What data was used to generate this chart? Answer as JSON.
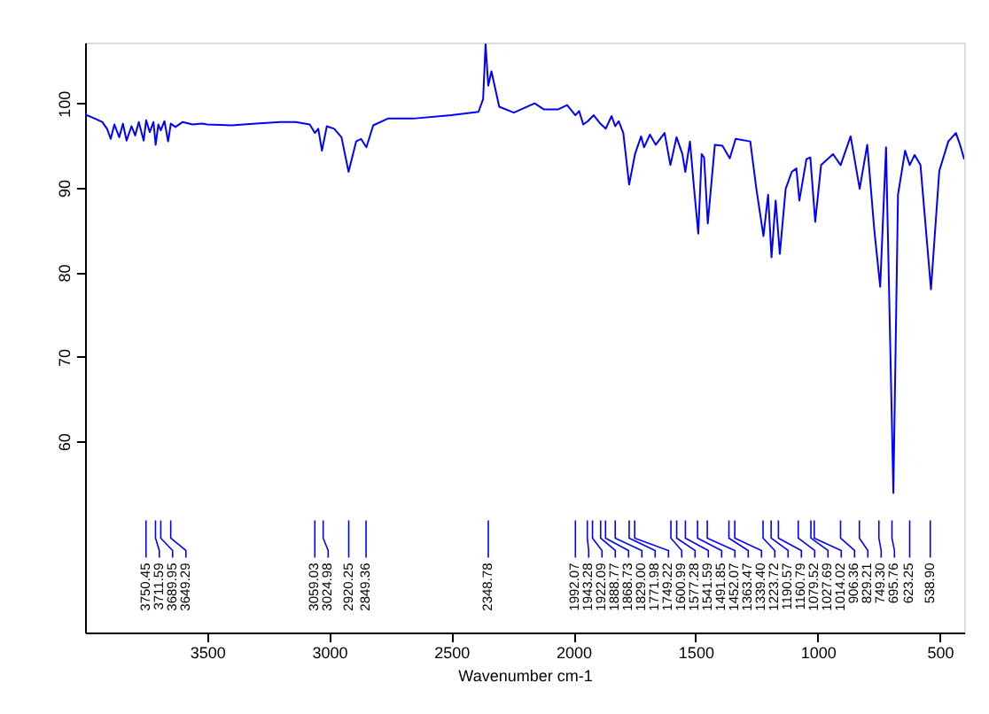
{
  "chart_data": {
    "type": "line",
    "xlabel": "Wavenumber cm-1",
    "xlim": [
      4000,
      400
    ],
    "xticks": [
      3500,
      3000,
      2500,
      2000,
      1500,
      1000,
      500
    ],
    "ylim": [
      37.4,
      107.2
    ],
    "yticks": [
      60,
      70,
      80,
      90,
      100
    ],
    "grid": false,
    "marker": "none",
    "line_style": "solid",
    "x": [
      4000,
      3960,
      3930,
      3910,
      3895,
      3880,
      3860,
      3845,
      3830,
      3810,
      3795,
      3780,
      3760,
      3750,
      3735,
      3720,
      3711,
      3700,
      3690,
      3675,
      3660,
      3649,
      3630,
      3600,
      3560,
      3520,
      3500,
      3400,
      3300,
      3200,
      3138,
      3080,
      3059,
      3045,
      3030,
      3010,
      2980,
      2950,
      2921,
      2890,
      2870,
      2848,
      2820,
      2760,
      2657,
      2500,
      2389,
      2370,
      2360,
      2349,
      2336,
      2304,
      2244,
      2159,
      2122,
      2062,
      2026,
      1992,
      1977,
      1960,
      1941,
      1917,
      1890,
      1868,
      1844,
      1829,
      1815,
      1796,
      1772,
      1748,
      1723,
      1711,
      1687,
      1663,
      1627,
      1603,
      1578,
      1554,
      1542,
      1523,
      1506,
      1489,
      1475,
      1465,
      1450,
      1421,
      1390,
      1360,
      1336,
      1276,
      1251,
      1222,
      1203,
      1189,
      1172,
      1155,
      1131,
      1106,
      1087,
      1075,
      1046,
      1030,
      1010,
      986,
      937,
      906,
      865,
      828,
      797,
      768,
      744,
      720,
      690,
      671,
      642,
      623,
      603,
      579,
      536,
      502,
      465,
      434,
      417,
      400
    ],
    "series": [
      {
        "color": "#0000ff",
        "values": [
          98.7,
          98.2,
          97.8,
          97.0,
          95.8,
          97.5,
          96.0,
          97.6,
          95.6,
          97.3,
          96.2,
          97.8,
          95.6,
          98.0,
          96.6,
          97.8,
          95.1,
          97.5,
          96.8,
          97.9,
          95.5,
          97.6,
          97.2,
          97.8,
          97.5,
          97.6,
          97.5,
          97.4,
          97.6,
          97.8,
          97.8,
          97.5,
          96.5,
          97.0,
          94.4,
          97.3,
          97.0,
          96.0,
          91.9,
          95.5,
          95.8,
          94.8,
          97.4,
          98.2,
          98.2,
          98.6,
          99.0,
          100.5,
          107.0,
          102.1,
          103.8,
          99.6,
          98.9,
          100.0,
          99.3,
          99.3,
          99.8,
          98.6,
          99.1,
          97.5,
          97.9,
          98.6,
          97.6,
          97.0,
          98.5,
          97.3,
          97.9,
          96.5,
          90.4,
          94.0,
          96.1,
          94.8,
          96.3,
          95.1,
          96.5,
          92.7,
          96.0,
          94.0,
          91.9,
          95.5,
          89.9,
          84.6,
          94.0,
          93.6,
          85.8,
          95.1,
          95.0,
          93.5,
          95.8,
          95.5,
          89.9,
          84.3,
          89.2,
          81.8,
          88.5,
          82.2,
          89.9,
          91.9,
          92.3,
          88.5,
          93.4,
          93.6,
          86.0,
          92.7,
          94.0,
          92.7,
          96.1,
          89.9,
          95.1,
          85.0,
          78.3,
          94.8,
          53.9,
          89.2,
          94.4,
          92.7,
          93.9,
          92.7,
          78.0,
          92.0,
          95.5,
          96.5,
          95.1,
          93.4
        ]
      }
    ],
    "annotations": [
      "3750.45",
      "3711.59",
      "3689.95",
      "3649.29",
      "3059.03",
      "3024.98",
      "2920.25",
      "2849.36",
      "2348.78",
      "1992.07",
      "1943.28",
      "1922.09",
      "1888.77",
      "1868.73",
      "1829.00",
      "1771.98",
      "1749.22",
      "1600.99",
      "1577.28",
      "1541.59",
      "1491.85",
      "1452.07",
      "1363.47",
      "1339.40",
      "1223.72",
      "1190.57",
      "1160.79",
      "1079.52",
      "1027.69",
      "1014.02",
      "906.36",
      "829.21",
      "749.30",
      "695.76",
      "623.25",
      "538.90"
    ]
  }
}
